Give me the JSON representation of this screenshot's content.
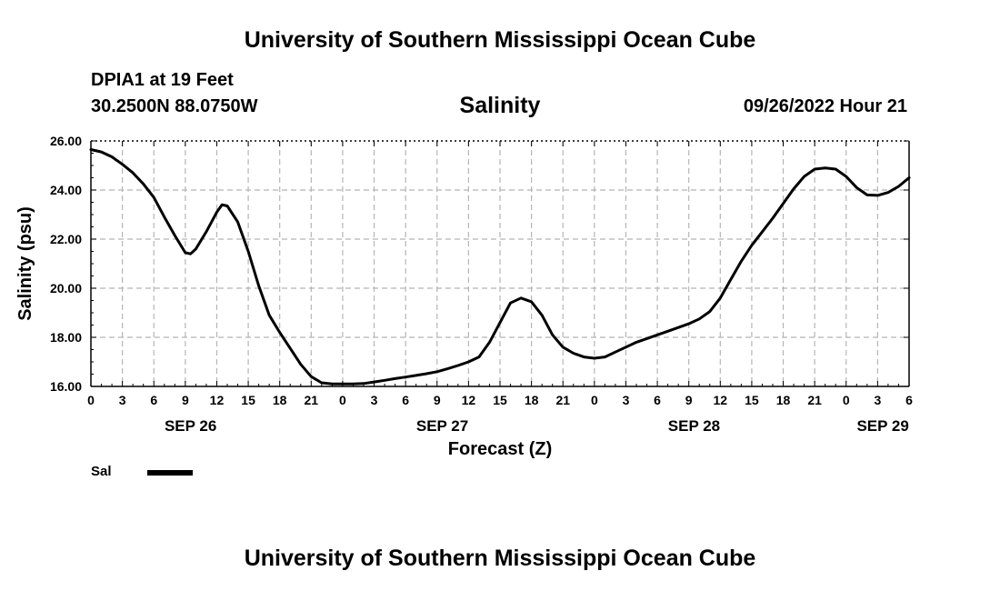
{
  "header": {
    "title": "University of Southern Mississippi Ocean Cube",
    "station": "DPIA1 at 19 Feet",
    "coordinates": "30.2500N  88.0750W",
    "timestamp": "09/26/2022 Hour 21"
  },
  "footer": {
    "title": "University of Southern Mississippi Ocean Cube"
  },
  "chart_data": {
    "type": "line",
    "title": "Salinity",
    "xlabel": "Forecast (Z)",
    "ylabel": "Salinity (psu)",
    "ylim": [
      16,
      26
    ],
    "xlim_hours": [
      0,
      78
    ],
    "grid": true,
    "y_ticks": [
      "16.00",
      "18.00",
      "20.00",
      "22.00",
      "24.00",
      "26.00"
    ],
    "x_tick_labels": [
      "0",
      "3",
      "6",
      "9",
      "12",
      "15",
      "18",
      "21",
      "0",
      "3",
      "6",
      "9",
      "12",
      "15",
      "18",
      "21",
      "0",
      "3",
      "6",
      "9",
      "12",
      "15",
      "18",
      "21",
      "0",
      "3",
      "6"
    ],
    "date_labels": [
      {
        "label": "SEP 26",
        "hour": 9.5
      },
      {
        "label": "SEP 27",
        "hour": 33.5
      },
      {
        "label": "SEP 28",
        "hour": 57.5
      },
      {
        "label": "SEP 29",
        "hour": 75.5
      }
    ],
    "legend": [
      {
        "name": "Sal",
        "placement": "bottom-left"
      }
    ],
    "series": [
      {
        "name": "Sal",
        "hours": [
          0,
          1,
          2,
          3,
          4,
          5,
          6,
          7,
          8,
          9,
          9.5,
          10,
          11,
          12,
          12.5,
          13,
          14,
          15,
          16,
          17,
          18,
          19,
          20,
          21,
          22,
          23,
          24,
          25,
          26,
          27,
          28,
          29,
          30,
          31,
          32,
          33,
          34,
          35,
          36,
          37,
          38,
          39,
          40,
          41,
          42,
          43,
          44,
          45,
          46,
          47,
          48,
          49,
          50,
          51,
          52,
          53,
          54,
          55,
          56,
          57,
          58,
          59,
          60,
          61,
          62,
          63,
          64,
          65,
          66,
          67,
          68,
          69,
          70,
          71,
          72,
          73,
          74,
          75,
          76,
          77,
          78
        ],
        "values": [
          25.65,
          25.55,
          25.35,
          25.05,
          24.7,
          24.25,
          23.7,
          22.9,
          22.15,
          21.45,
          21.4,
          21.6,
          22.3,
          23.1,
          23.4,
          23.35,
          22.7,
          21.5,
          20.1,
          18.9,
          18.2,
          17.55,
          16.9,
          16.4,
          16.15,
          16.1,
          16.1,
          16.1,
          16.12,
          16.18,
          16.25,
          16.32,
          16.38,
          16.45,
          16.52,
          16.6,
          16.72,
          16.85,
          17.0,
          17.2,
          17.8,
          18.6,
          19.4,
          19.6,
          19.45,
          18.9,
          18.1,
          17.6,
          17.35,
          17.2,
          17.15,
          17.2,
          17.4,
          17.6,
          17.8,
          17.95,
          18.1,
          18.25,
          18.4,
          18.55,
          18.75,
          19.05,
          19.6,
          20.35,
          21.1,
          21.75,
          22.3,
          22.85,
          23.45,
          24.05,
          24.55,
          24.85,
          24.9,
          24.85,
          24.55,
          24.1,
          23.8,
          23.78,
          23.9,
          24.15,
          24.5
        ]
      }
    ]
  }
}
